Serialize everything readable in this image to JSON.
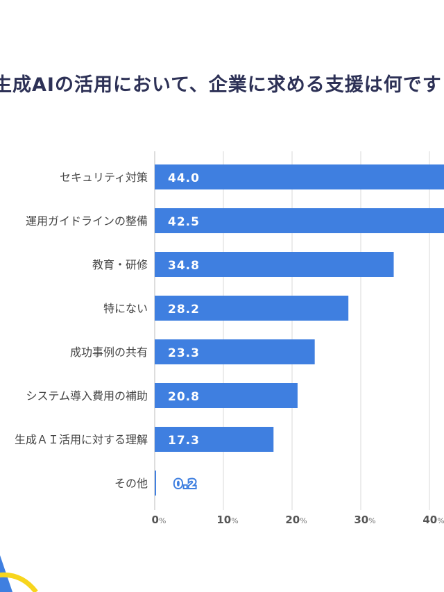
{
  "title": "生成AIの活用において、企業に求める支援は何です",
  "colors": {
    "bar": "#3f7fe0",
    "grid": "#d9d9d9",
    "title": "#2d3156",
    "accent_yellow": "#f7d51d"
  },
  "chart_data": {
    "type": "bar",
    "orientation": "horizontal",
    "title": "生成AIの活用において、企業に求める支援は何です",
    "categories": [
      "セキュリティ対策",
      "運用ガイドラインの整備",
      "教育・研修",
      "特にない",
      "成功事例の共有",
      "システム導入費用の補助",
      "生成ＡＩ活用に対する理解",
      "その他"
    ],
    "values": [
      44.0,
      42.5,
      34.8,
      28.2,
      23.3,
      20.8,
      17.3,
      0.2
    ],
    "value_labels": [
      "44.0",
      "42.5",
      "34.8",
      "28.2",
      "23.3",
      "20.8",
      "17.3",
      "0.2"
    ],
    "xticks": [
      0,
      10,
      20,
      30,
      40
    ],
    "xtick_unit": "%",
    "xlim": [
      0,
      42
    ],
    "grid": true
  }
}
